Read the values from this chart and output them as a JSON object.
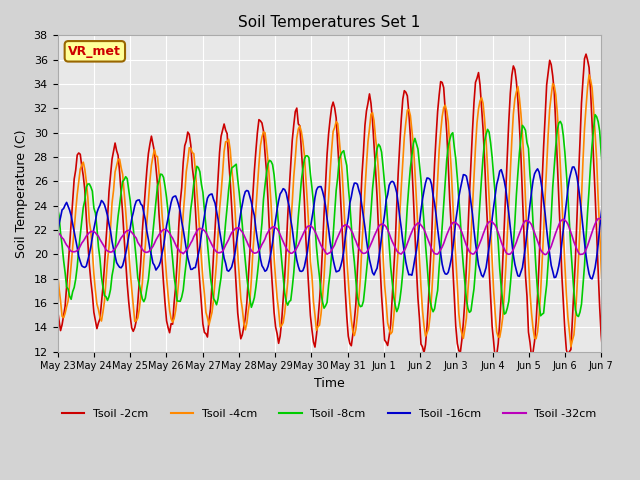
{
  "title": "Soil Temperatures Set 1",
  "xlabel": "Time",
  "ylabel": "Soil Temperature (C)",
  "ylim": [
    12,
    38
  ],
  "yticks": [
    12,
    14,
    16,
    18,
    20,
    22,
    24,
    26,
    28,
    30,
    32,
    34,
    36,
    38
  ],
  "colors": [
    "#cc0000",
    "#ff8800",
    "#00cc00",
    "#0000cc",
    "#bb00bb"
  ],
  "labels": [
    "Tsoil -2cm",
    "Tsoil -4cm",
    "Tsoil -8cm",
    "Tsoil -16cm",
    "Tsoil -32cm"
  ],
  "annotation_text": "VR_met",
  "annotation_color": "#cc0000",
  "annotation_bg": "#ffff99",
  "annotation_edge": "#996600",
  "x_labels": [
    "May 23",
    "May 24",
    "May 25",
    "May 26",
    "May 27",
    "May 28",
    "May 29",
    "May 30",
    "May 31",
    "Jun 1",
    "Jun 2",
    "Jun 3",
    "Jun 4",
    "Jun 5",
    "Jun 6",
    "Jun 7"
  ],
  "fig_bg": "#d3d3d3",
  "plot_bg": "#e8e8e8",
  "grid_color": "#ffffff"
}
